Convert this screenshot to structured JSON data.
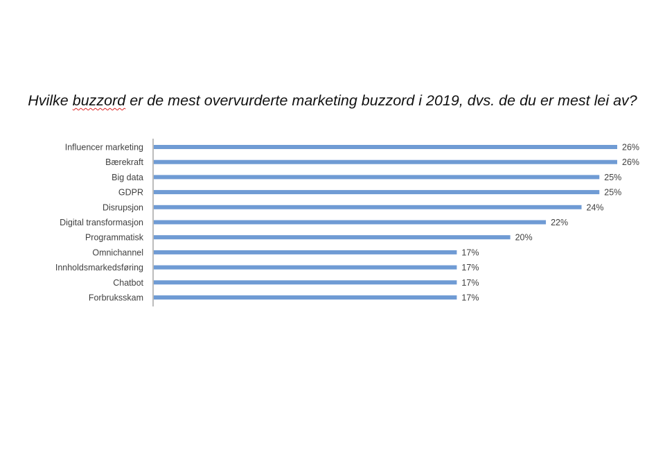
{
  "chart_data": {
    "type": "bar",
    "orientation": "horizontal",
    "title_parts": [
      "Hvilke ",
      "buzzord",
      " er de mest overvurderte marketing buzzord i 2019, dvs. de du er mest lei av?"
    ],
    "categories": [
      "Influencer marketing",
      "Bærekraft",
      "Big data",
      "GDPR",
      "Disrupsjon",
      "Digital transformasjon",
      "Programmatisk",
      "Omnichannel",
      "Innholdsmarkedsføring",
      "Chatbot",
      "Forbruksskam"
    ],
    "values": [
      26,
      26,
      25,
      25,
      24,
      22,
      20,
      17,
      17,
      17,
      17
    ],
    "value_labels": [
      "26%",
      "26%",
      "25%",
      "25%",
      "24%",
      "22%",
      "20%",
      "17%",
      "17%",
      "17%",
      "17%"
    ],
    "unit": "%",
    "xlim": [
      0,
      26
    ],
    "grid": false,
    "legend": "none",
    "colors": {
      "bar": "#6f9bd4",
      "axis": "#a6a6a6",
      "text": "#404040"
    }
  }
}
